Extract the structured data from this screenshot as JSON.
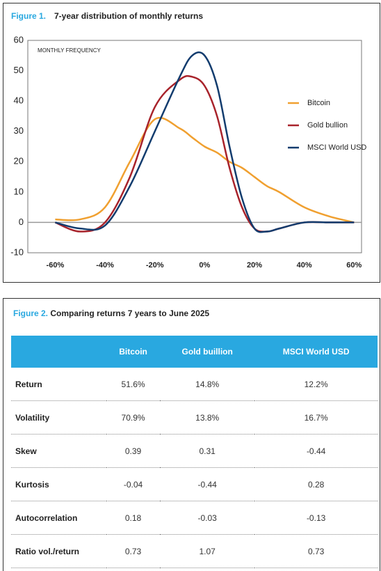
{
  "chart_data": {
    "type": "line",
    "figure_label": "Figure 1.",
    "title": "7-year distribution of monthly returns",
    "y_label": "MONTHLY FREQUENCY",
    "x": [
      -60,
      -50,
      -40,
      -30,
      -20,
      -10,
      -5,
      0,
      5,
      10,
      15,
      20,
      25,
      30,
      40,
      50,
      60
    ],
    "series": [
      {
        "name": "Bitcoin",
        "color": "#f0a030",
        "values": [
          1,
          1,
          5,
          20,
          34,
          31,
          28,
          25,
          23,
          20,
          18,
          15,
          12,
          10,
          5,
          2,
          0
        ]
      },
      {
        "name": "Gold bullion",
        "color": "#a8232b",
        "values": [
          0,
          -3,
          0,
          15,
          38,
          47,
          48,
          45,
          35,
          18,
          5,
          -2,
          -3,
          -2,
          0,
          0,
          0
        ]
      },
      {
        "name": "MSCI World USD",
        "color": "#123c6e",
        "values": [
          0,
          -2,
          -1,
          12,
          30,
          48,
          55,
          55,
          45,
          25,
          8,
          -2,
          -3,
          -2,
          0,
          0,
          0
        ]
      }
    ],
    "xlim": [
      -71,
      63
    ],
    "xticks": [
      {
        "value": -60,
        "label": "-60%"
      },
      {
        "value": -40,
        "label": "-40%"
      },
      {
        "value": -20,
        "label": "-20%"
      },
      {
        "value": 0,
        "label": "0%"
      },
      {
        "value": 20,
        "label": "20%"
      },
      {
        "value": 40,
        "label": "40%"
      },
      {
        "value": 60,
        "label": "60%"
      }
    ],
    "ylim": [
      -10,
      60
    ],
    "yticks": [
      -10,
      0,
      10,
      20,
      30,
      40,
      50,
      60
    ],
    "legend": "right"
  },
  "table": {
    "figure_label": "Figure 2.",
    "title": "Comparing returns 7 years to June 2025",
    "header": [
      "Bitcoin",
      "Gold buillion",
      "MSCI World USD"
    ],
    "rows": [
      [
        "Return",
        "51.6%",
        "14.8%",
        "12.2%"
      ],
      [
        "Volatility",
        "70.9%",
        "13.8%",
        "16.7%"
      ],
      [
        "Skew",
        "0.39",
        "0.31",
        "-0.44"
      ],
      [
        "Kurtosis",
        "-0.04",
        "-0.44",
        "0.28"
      ],
      [
        "Autocorrelation",
        "0.18",
        "-0.03",
        "-0.13"
      ],
      [
        "Ratio vol./return",
        "0.73",
        "1.07",
        "0.73"
      ]
    ]
  }
}
